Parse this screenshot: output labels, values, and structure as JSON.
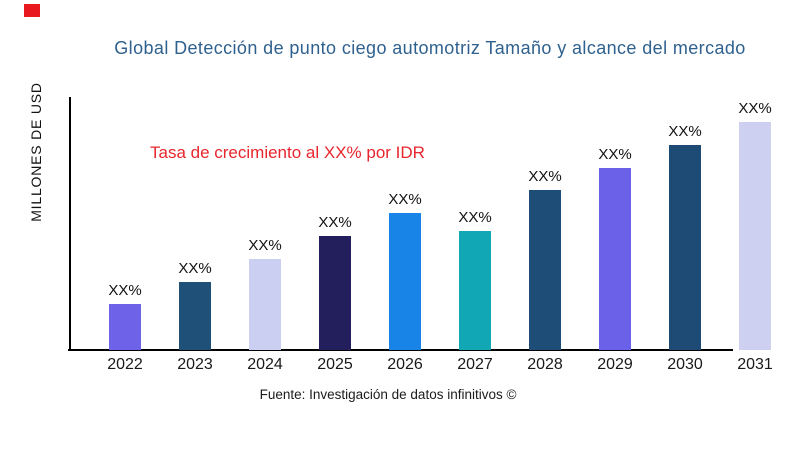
{
  "page": {
    "background": "#ffffff"
  },
  "logo": {
    "name": "red-square-logo-mark",
    "color": "#e8191f"
  },
  "chart_data": {
    "type": "bar",
    "title": "Global Detección de punto ciego automotriz Tamaño y alcance del mercado",
    "title_color": "#2f618f",
    "ylabel": "MILLONES DE USD",
    "xlabel": "",
    "categories": [
      "2022",
      "2023",
      "2024",
      "2025",
      "2026",
      "2027",
      "2028",
      "2029",
      "2030",
      "2031"
    ],
    "values": [
      20,
      30,
      40,
      50,
      60,
      52,
      70,
      80,
      90,
      100
    ],
    "ylim": [
      0,
      100
    ],
    "bar_labels": [
      "XX%",
      "XX%",
      "XX%",
      "XX%",
      "XX%",
      "XX%",
      "XX%",
      "XX%",
      "XX%",
      "XX%"
    ],
    "bar_colors": [
      "#6e63e8",
      "#1f5078",
      "#cbcff2",
      "#231e5c",
      "#1884e8",
      "#12a7b5",
      "#1e4d78",
      "#6b60e8",
      "#1e4a76",
      "#cdd0f0"
    ],
    "annotation": {
      "text": "Tasa de crecimiento al XX% por IDR",
      "color": "#e8262d"
    },
    "legend": "none",
    "grid": false,
    "y_tick_labels": []
  },
  "footer": {
    "text": "Fuente: Investigación de datos infinitivos ©"
  }
}
